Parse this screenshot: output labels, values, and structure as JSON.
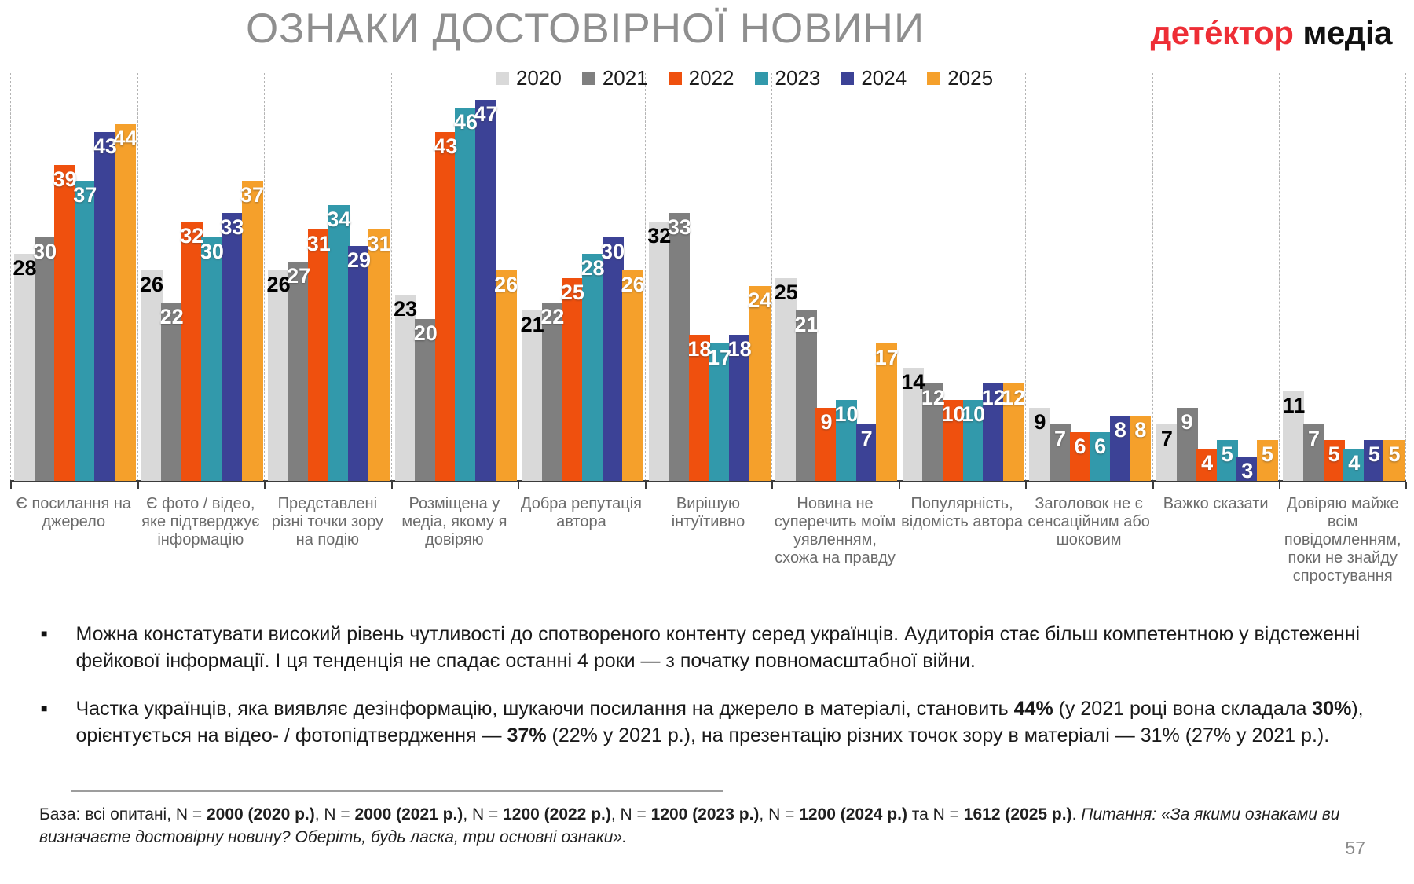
{
  "title": "ОЗНАКИ ДОСТОВІРНОЇ НОВИНИ",
  "logo": {
    "brand": "дете́ктор",
    "suffix": "медіа",
    "brand_color": "#ee2e36",
    "suffix_color": "#111111"
  },
  "page_number": "57",
  "chart_data": {
    "type": "bar",
    "title": "ОЗНАКИ ДОСТОВІРНОЇ НОВИНИ",
    "values_unit": "%",
    "ylim": [
      0,
      50
    ],
    "legend_position": "top",
    "grid": "dashed vertical separators between category groups",
    "categories": [
      "Є посилання на джерело",
      "Є фото / відео, яке підтверджує інформацію",
      "Представлені різні точки зору на подію",
      "Розміщена у медіа, якому я довіряю",
      "Добра репутація автора",
      "Вирішую інтуїтивно",
      "Новина не суперечить моїм уявленням, схожа на правду",
      "Популярність, відомість автора",
      "Заголовок не є сенсаційним або шоковим",
      "Важко сказати",
      "Довіряю майже всім повідомленням, поки не знайду спростування"
    ],
    "series": [
      {
        "name": "2020",
        "color": "#d9d9d9",
        "label_color": "#000000",
        "values": [
          28,
          26,
          26,
          23,
          21,
          32,
          25,
          14,
          9,
          7,
          11
        ]
      },
      {
        "name": "2021",
        "color": "#7f7f7f",
        "label_color": "#ffffff",
        "values": [
          30,
          22,
          27,
          20,
          22,
          33,
          21,
          12,
          7,
          9,
          7
        ]
      },
      {
        "name": "2022",
        "color": "#ef500e",
        "label_color": "#ffffff",
        "values": [
          39,
          32,
          31,
          43,
          25,
          18,
          9,
          10,
          6,
          4,
          5
        ]
      },
      {
        "name": "2023",
        "color": "#3299ab",
        "label_color": "#ffffff",
        "values": [
          37,
          30,
          34,
          46,
          28,
          17,
          10,
          10,
          6,
          5,
          4
        ]
      },
      {
        "name": "2024",
        "color": "#3c4296",
        "label_color": "#ffffff",
        "values": [
          43,
          33,
          29,
          47,
          30,
          18,
          7,
          12,
          8,
          3,
          5
        ]
      },
      {
        "name": "2025",
        "color": "#f5a02b",
        "label_color": "#ffffff",
        "values": [
          44,
          37,
          31,
          26,
          26,
          24,
          17,
          12,
          8,
          5,
          5
        ]
      }
    ]
  },
  "bullets": [
    {
      "segments": [
        {
          "t": "Можна констатувати високий рівень чутливості до спотвореного контенту серед українців. Аудиторія стає більш компетентною у відстеженні фейкової інформації. І ця тенденція не спадає останні 4 роки — з початку повномасштабної війни."
        }
      ]
    },
    {
      "segments": [
        {
          "t": "Частка українців, яка виявляє дезінформацію, шукаючи посилання на джерело в матеріалі, становить "
        },
        {
          "t": "44%",
          "b": true
        },
        {
          "t": " (у 2021 році вона складала "
        },
        {
          "t": "30%",
          "b": true
        },
        {
          "t": "), орієнтується на відео- / фотопідтвердження — "
        },
        {
          "t": "37%",
          "b": true
        },
        {
          "t": " (22% у 2021 р.), на презентацію різних точок зору в матеріалі — 31% (27% у 2021 р.)."
        }
      ]
    }
  ],
  "footnote": {
    "segments": [
      {
        "t": "База: всі опитані, N = "
      },
      {
        "t": "2000 (2020 р.)",
        "b": true
      },
      {
        "t": ", N = "
      },
      {
        "t": "2000 (2021 р.)",
        "b": true
      },
      {
        "t": ", N = "
      },
      {
        "t": "1200 (2022 р.)",
        "b": true
      },
      {
        "t": ", N = "
      },
      {
        "t": "1200 (2023 р.)",
        "b": true
      },
      {
        "t": ", N = "
      },
      {
        "t": "1200 (2024 р.)",
        "b": true
      },
      {
        "t": " та N = "
      },
      {
        "t": "1612 (2025 р.)",
        "b": true
      },
      {
        "t": ". "
      },
      {
        "t": "Питання: «За якими ознаками ви визначаєте достовірну новину? Оберіть, будь ласка, три основні ознаки».",
        "i": true
      }
    ]
  }
}
